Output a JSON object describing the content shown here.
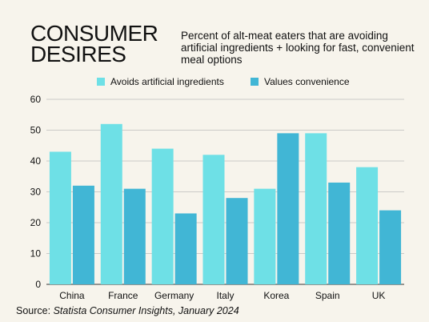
{
  "header": {
    "title_line1": "CONSUMER",
    "title_line2": "DESIRES",
    "subtitle": "Percent of alt-meat eaters that are avoiding artificial ingredients + looking for fast, convenient meal options"
  },
  "footer": {
    "source_label": "Source:",
    "source_text": "Statista Consumer Insights, January 2024"
  },
  "colors": {
    "background": "#f7f4ec",
    "series_1": "#6ee0e6",
    "series_2": "#41b6d5",
    "grid": "#bdbdbd"
  },
  "chart_data": {
    "type": "bar",
    "categories": [
      "China",
      "France",
      "Germany",
      "Italy",
      "Korea",
      "Spain",
      "UK"
    ],
    "series": [
      {
        "name": "Avoids artificial ingredients",
        "values": [
          43,
          52,
          44,
          42,
          31,
          49,
          38
        ]
      },
      {
        "name": "Values convenience",
        "values": [
          32,
          31,
          23,
          28,
          49,
          33,
          24
        ]
      }
    ],
    "yticks": [
      0,
      10,
      20,
      30,
      40,
      50,
      60
    ],
    "ylim": [
      0,
      60
    ],
    "grid": true,
    "legend_position": "top-center"
  }
}
